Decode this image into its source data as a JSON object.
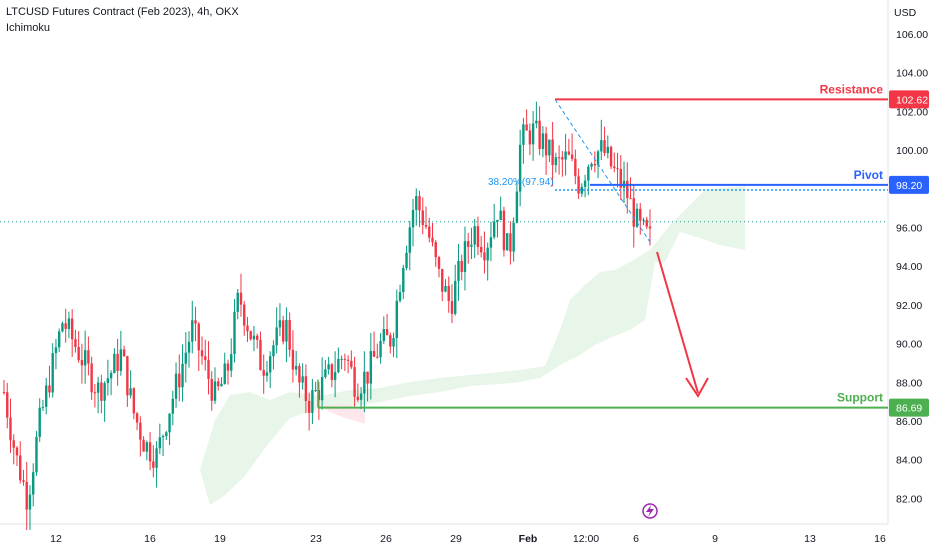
{
  "header": {
    "title": "LTCUSD Futures Contract (Feb 2023), 4h, OKX",
    "indicator": "Ichimoku"
  },
  "colors": {
    "up": "#26a69a",
    "up_strong": "#089981",
    "down": "#f23645",
    "resistance": "#f23645",
    "pivot": "#2962ff",
    "support": "#4caf50",
    "cloud_green": "#e8f5e9",
    "cloud_red": "#fde7ea",
    "fib": "#2196f3",
    "arrow": "#f23645",
    "event_icon": "#9c27b0"
  },
  "chart_data": {
    "type": "candlestick",
    "currency_label": "USD",
    "ylim": [
      80.5,
      107.5
    ],
    "y_ticks": [
      "82.00",
      "84.00",
      "86.00",
      "88.00",
      "90.00",
      "92.00",
      "94.00",
      "96.00",
      "98.00",
      "100.00",
      "102.00",
      "104.00",
      "106.00"
    ],
    "x_ticks": [
      "12",
      "16",
      "19",
      "23",
      "26",
      "29",
      "Feb",
      "12:00",
      "6",
      "9",
      "13",
      "16"
    ],
    "x_tick_bold": "Feb",
    "last_price": 96.3,
    "fib_label": "38.20%(97.94)",
    "levels": [
      {
        "name": "Resistance",
        "value": "102.62"
      },
      {
        "name": "Pivot",
        "value": "98.20"
      },
      {
        "name": "Support",
        "value": "86.69"
      }
    ],
    "anchors": [
      87.5,
      84.2,
      82.0,
      85.8,
      88.5,
      91.2,
      90.0,
      88.8,
      87.6,
      88.4,
      89.5,
      86.5,
      84.8,
      84.2,
      86.5,
      88.5,
      90.8,
      89.0,
      87.2,
      88.5,
      92.5,
      90.5,
      88.8,
      90.0,
      91.0,
      88.0,
      87.0,
      87.8,
      88.6,
      89.5,
      87.8,
      88.5,
      89.9,
      90.3,
      94.5,
      97.5,
      96.0,
      93.5,
      92.0,
      94.2,
      96.0,
      95.0,
      97.0,
      94.5,
      100.5,
      101.0,
      100.3,
      99.2,
      99.6,
      98.2,
      99.8,
      100.0,
      98.8,
      97.8,
      96.0,
      95.4
    ]
  }
}
